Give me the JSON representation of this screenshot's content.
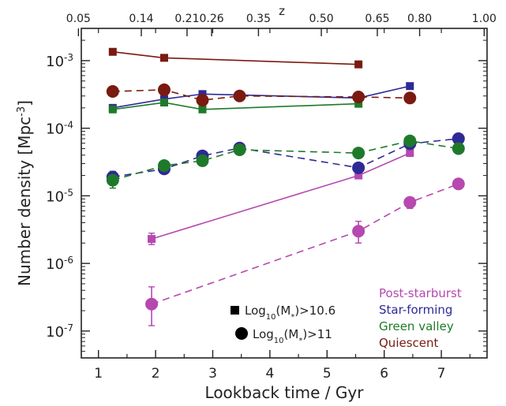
{
  "chart_data": {
    "type": "scatter",
    "xlabel": "Lookback time / Gyr",
    "ylabel_prefix": "Number density [Mpc",
    "ylabel_exp": "-3",
    "ylabel_suffix": "]",
    "top_axis_label": "z",
    "xlim": [
      0.7,
      7.8
    ],
    "ylim": [
      4e-08,
      0.003
    ],
    "yscale": "log",
    "x_ticks": [
      "1",
      "2",
      "3",
      "4",
      "5",
      "6",
      "7"
    ],
    "y_ticks": [
      {
        "base": "10",
        "exp": "-7",
        "value": 1e-07
      },
      {
        "base": "10",
        "exp": "-6",
        "value": 1e-06
      },
      {
        "base": "10",
        "exp": "-5",
        "value": 1e-05
      },
      {
        "base": "10",
        "exp": "-4",
        "value": 0.0001
      },
      {
        "base": "10",
        "exp": "-3",
        "value": 0.001
      }
    ],
    "top_ticks": [
      {
        "label": "0.05",
        "t": 0.65
      },
      {
        "label": "0.14",
        "t": 1.75
      },
      {
        "label": "0.21",
        "t": 2.55
      },
      {
        "label": "0.26",
        "t": 2.98
      },
      {
        "label": "0.35",
        "t": 3.8
      },
      {
        "label": "0.50",
        "t": 4.9
      },
      {
        "label": "0.65",
        "t": 5.88
      },
      {
        "label": "0.80",
        "t": 6.62
      },
      {
        "label": "1.00",
        "t": 7.75
      }
    ],
    "series": [
      {
        "name": "Post-starburst",
        "color": "#b648b0",
        "mass": "Log10(M*)>10.6",
        "marker": "square",
        "dash": false,
        "x": [
          1.93,
          5.55,
          6.45
        ],
        "y": [
          2.3e-06,
          2e-05,
          4.3e-05
        ],
        "err_lo": [
          1.9e-06,
          1.8e-05,
          3.9e-05
        ],
        "err_hi": [
          2.8e-06,
          2.3e-05,
          4.7e-05
        ]
      },
      {
        "name": "Post-starburst",
        "color": "#b648b0",
        "mass": "Log10(M*)>11",
        "marker": "circle",
        "dash": true,
        "x": [
          1.93,
          5.55,
          6.45,
          7.3
        ],
        "y": [
          2.5e-07,
          3e-06,
          8e-06,
          1.5e-05
        ],
        "err_lo": [
          1.2e-07,
          2e-06,
          6.5e-06,
          1.3e-05
        ],
        "err_hi": [
          4.5e-07,
          4.2e-06,
          9.5e-06,
          1.7e-05
        ]
      },
      {
        "name": "Star-forming",
        "color": "#2e2a94",
        "mass": "Log10(M*)>10.6",
        "marker": "square",
        "dash": false,
        "x": [
          1.25,
          2.15,
          2.82,
          5.55,
          6.45
        ],
        "y": [
          0.0002,
          0.00027,
          0.00032,
          0.00028,
          0.00042
        ]
      },
      {
        "name": "Star-forming",
        "color": "#2e2a94",
        "mass": "Log10(M*)>11",
        "marker": "circle",
        "dash": true,
        "x": [
          1.25,
          2.15,
          2.82,
          3.47,
          5.55,
          6.45,
          7.3
        ],
        "y": [
          1.9e-05,
          2.5e-05,
          3.9e-05,
          5.1e-05,
          2.6e-05,
          5.9e-05,
          7e-05
        ],
        "err_lo": [
          1.5e-05,
          2.2e-05,
          3.5e-05,
          4.7e-05,
          2.3e-05,
          5.5e-05,
          6.5e-05
        ],
        "err_hi": [
          2.3e-05,
          2.9e-05,
          4.3e-05,
          5.5e-05,
          3e-05,
          6.4e-05,
          7.5e-05
        ]
      },
      {
        "name": "Green valley",
        "color": "#1e7a2a",
        "mass": "Log10(M*)>10.6",
        "marker": "square",
        "dash": false,
        "x": [
          1.25,
          2.15,
          2.82,
          5.55
        ],
        "y": [
          0.00019,
          0.00024,
          0.00019,
          0.00023
        ]
      },
      {
        "name": "Green valley",
        "color": "#1e7a2a",
        "mass": "Log10(M*)>11",
        "marker": "circle",
        "dash": true,
        "x": [
          1.25,
          2.15,
          2.82,
          3.47,
          5.55,
          6.45,
          7.3
        ],
        "y": [
          1.7e-05,
          2.8e-05,
          3.3e-05,
          4.8e-05,
          4.3e-05,
          6.5e-05,
          5e-05
        ],
        "err_lo": [
          1.3e-05,
          2.5e-05,
          3e-05,
          4.5e-05,
          4e-05,
          6.1e-05,
          4.7e-05
        ],
        "err_hi": [
          2.1e-05,
          3.1e-05,
          3.6e-05,
          5.1e-05,
          4.6e-05,
          6.9e-05,
          5.3e-05
        ]
      },
      {
        "name": "Quiescent",
        "color": "#7a1a10",
        "mass": "Log10(M*)>10.6",
        "marker": "square",
        "dash": false,
        "x": [
          1.25,
          2.15,
          5.55
        ],
        "y": [
          0.00135,
          0.0011,
          0.00088
        ]
      },
      {
        "name": "Quiescent",
        "color": "#7a1a10",
        "mass": "Log10(M*)>11",
        "marker": "circle",
        "dash": true,
        "x": [
          1.25,
          2.15,
          2.82,
          3.47,
          5.55,
          6.45
        ],
        "y": [
          0.00035,
          0.00037,
          0.00026,
          0.0003,
          0.00029,
          0.00028
        ]
      }
    ],
    "legend_colors": [
      {
        "label": "Post-starburst",
        "color": "#b648b0"
      },
      {
        "label": "Star-forming",
        "color": "#2e2a94"
      },
      {
        "label": "Green valley",
        "color": "#1e7a2a"
      },
      {
        "label": "Quiescent",
        "color": "#7a1a10"
      }
    ],
    "legend_markers": [
      {
        "marker": "square",
        "base": "Log",
        "sub": "10",
        "mid": "(M",
        "sub2": "*",
        "end": ")>10.6"
      },
      {
        "marker": "circle",
        "base": "Log",
        "sub": "10",
        "mid": "(M",
        "sub2": "*",
        "end": ")>11"
      }
    ]
  }
}
